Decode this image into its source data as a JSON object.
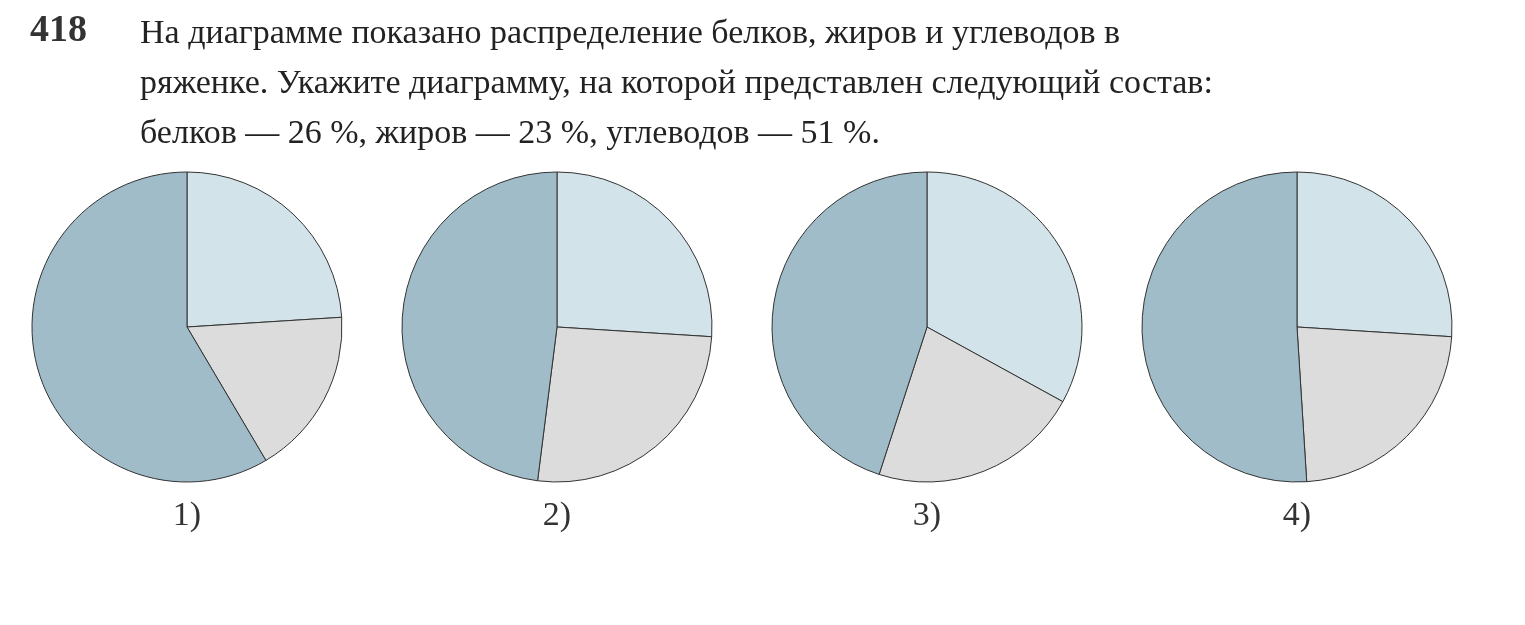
{
  "chart_data": [
    {
      "type": "other",
      "title": "418",
      "annotations": [
        "На диаграмме показано распределение белков, жиров и углеводов в ряженке. Укажите диаграмму, на которой представлен следующий состав: белков — 26 %, жиров — 23 %, углеводов — 51 %."
      ]
    },
    {
      "type": "pie",
      "xlabel": "1)",
      "categories": [
        null,
        null,
        null
      ],
      "values": [
        24,
        17.5,
        58.5
      ],
      "colors": [
        "#d3e3ea",
        "#dcdcdc",
        "#9fbcc8"
      ],
      "legend": false
    },
    {
      "type": "pie",
      "xlabel": "2)",
      "categories": [
        null,
        null,
        null
      ],
      "values": [
        26,
        26,
        48
      ],
      "colors": [
        "#d3e3ea",
        "#dcdcdc",
        "#9fbcc8"
      ],
      "legend": false
    },
    {
      "type": "pie",
      "xlabel": "3)",
      "categories": [
        null,
        null,
        null
      ],
      "values": [
        33,
        22,
        45
      ],
      "colors": [
        "#d3e3ea",
        "#dcdcdc",
        "#9fbcc8"
      ],
      "legend": false
    },
    {
      "type": "pie",
      "xlabel": "4)",
      "categories": [
        null,
        null,
        null
      ],
      "values": [
        26,
        23,
        51
      ],
      "colors": [
        "#d3e3ea",
        "#dcdcdc",
        "#9fbcc8"
      ],
      "legend": false
    }
  ]
}
